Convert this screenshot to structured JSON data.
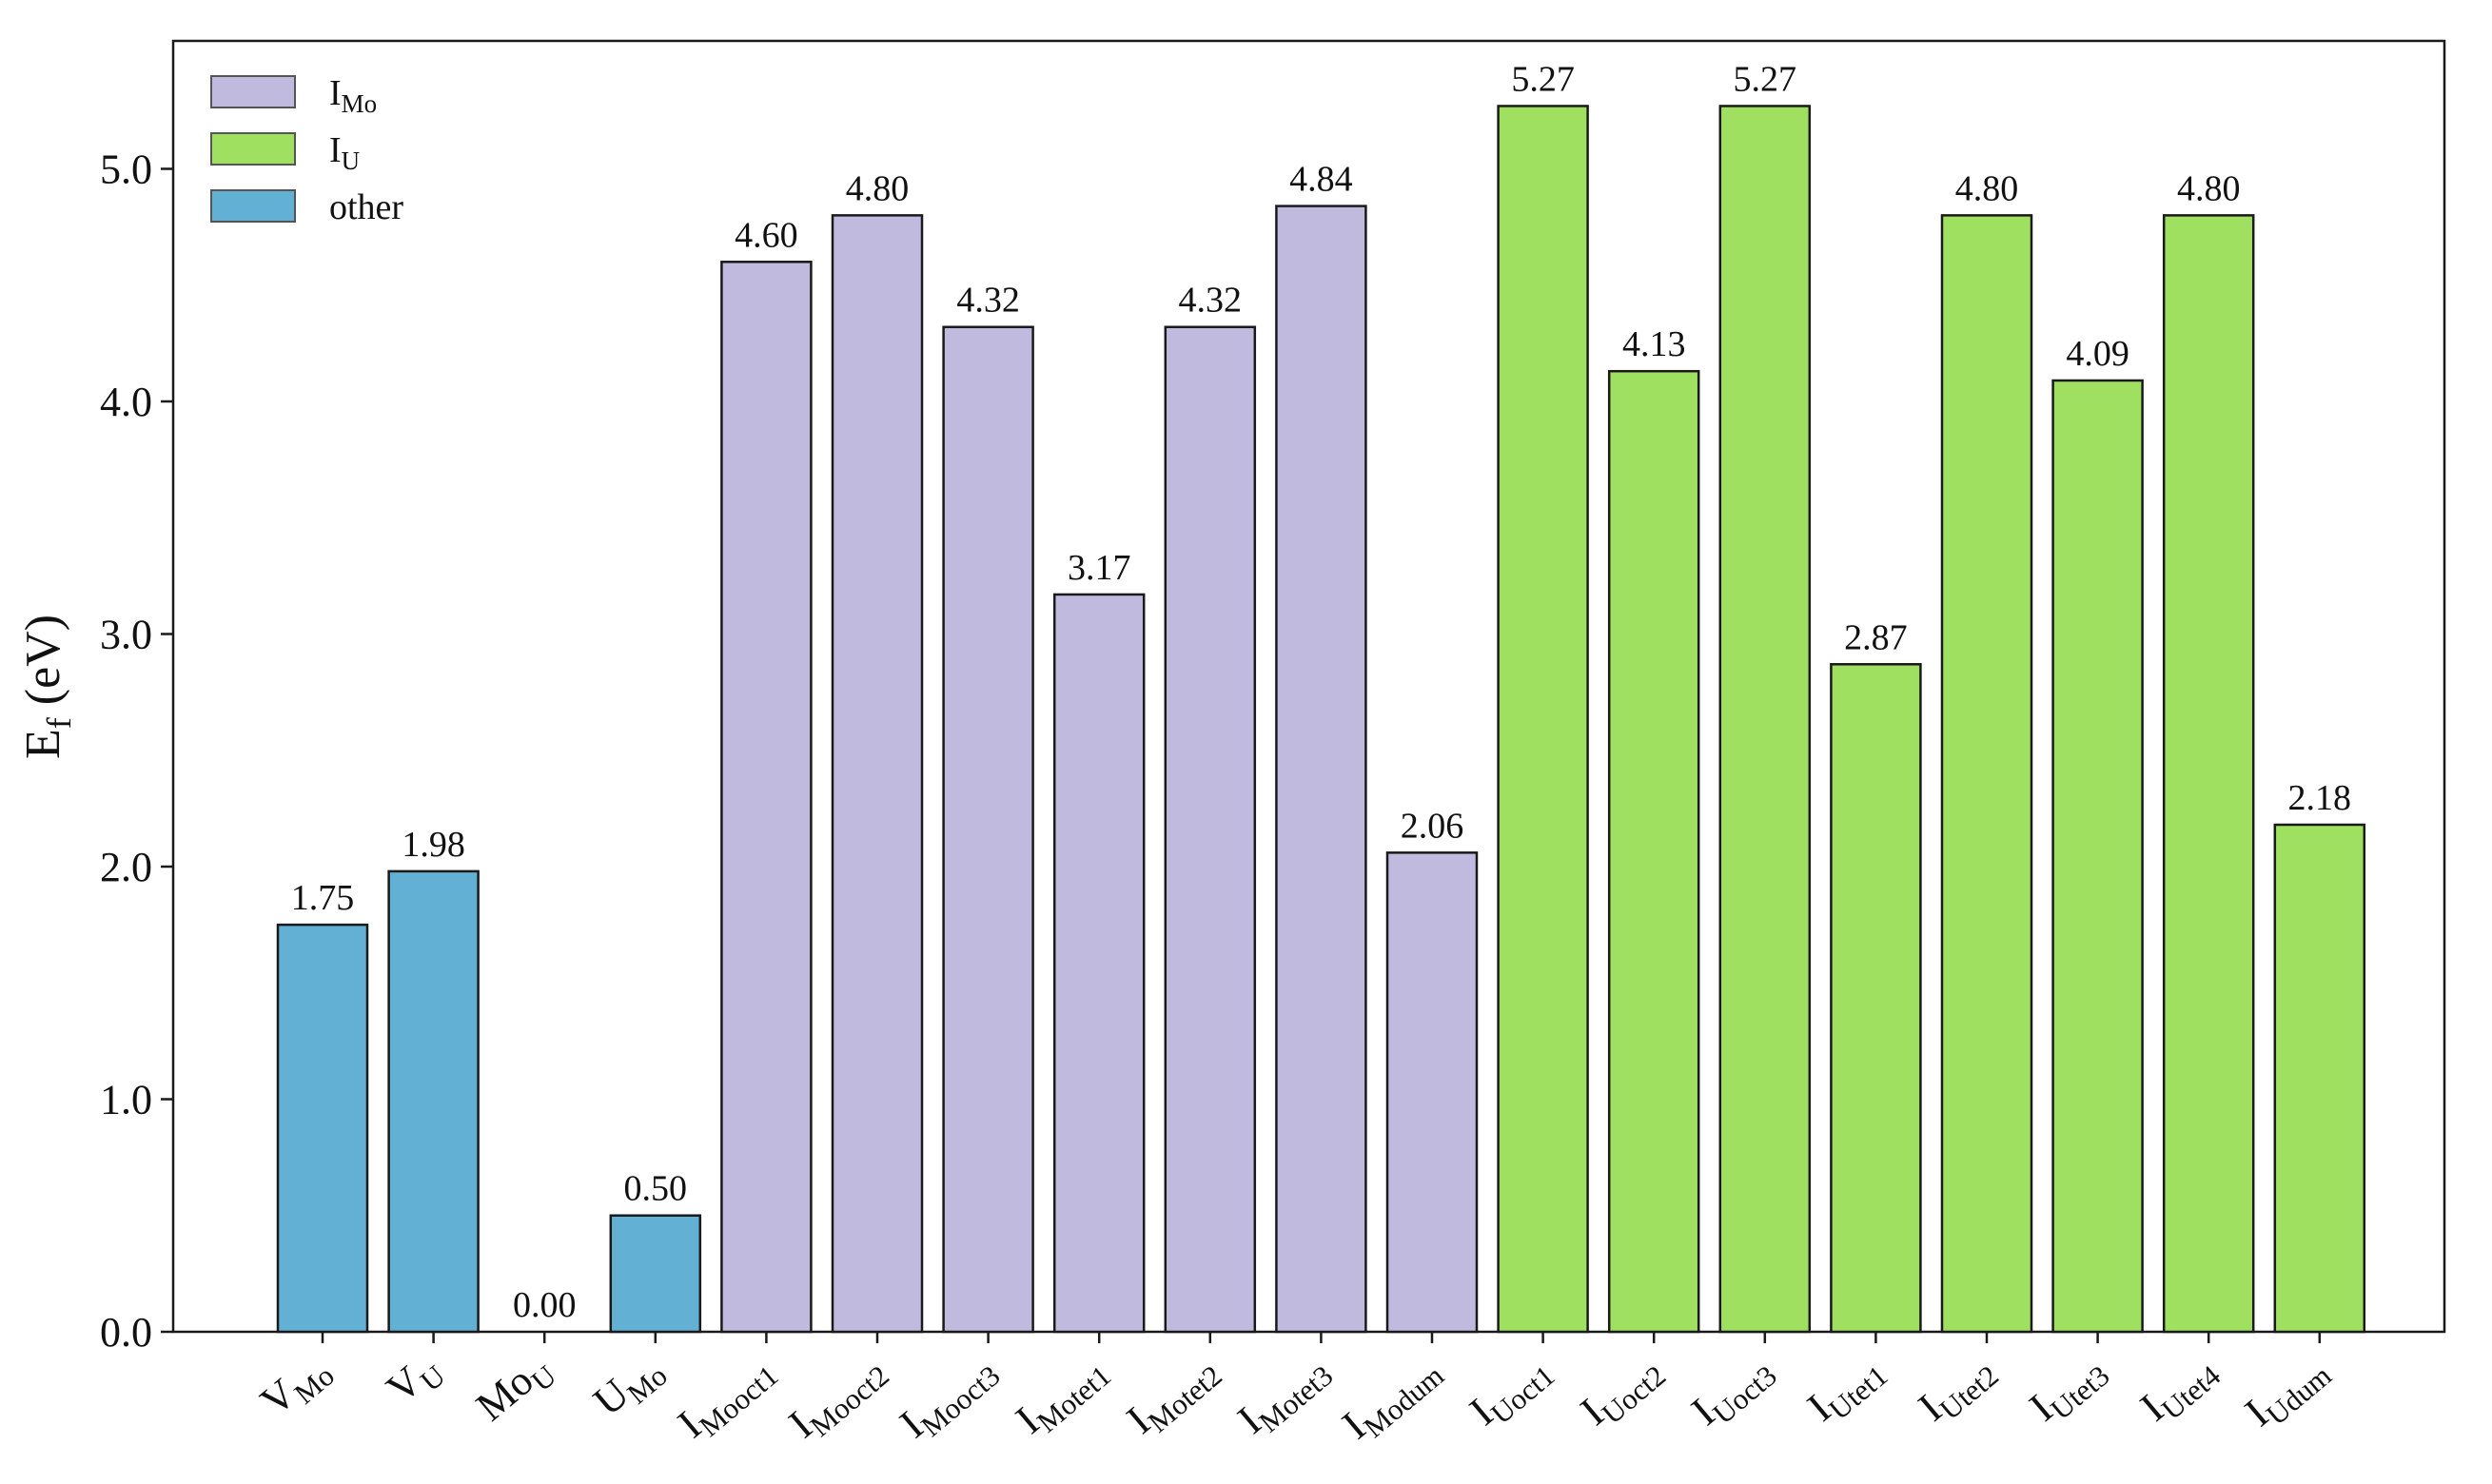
{
  "chart_data": {
    "type": "bar",
    "ylabel": {
      "main": "E",
      "sub": "f",
      "rest": " (eV)"
    },
    "ylim": [
      0,
      5.55
    ],
    "yticks": [
      0.0,
      1.0,
      2.0,
      3.0,
      4.0,
      5.0
    ],
    "ytick_labels": [
      "0.0",
      "1.0",
      "2.0",
      "3.0",
      "4.0",
      "5.0"
    ],
    "grid": false,
    "legend_position": "top-left",
    "colors": {
      "I_Mo": "#c0bbde",
      "I_U": "#a0e060",
      "other": "#62b0d4",
      "edge": "#1a1a1a"
    },
    "legend": [
      {
        "key": "I_Mo",
        "main": "I",
        "sub": "Mo"
      },
      {
        "key": "I_U",
        "main": "I",
        "sub": "U"
      },
      {
        "key": "other",
        "main": "other",
        "sub": ""
      }
    ],
    "categories": [
      {
        "main": "V",
        "sub": "Mo",
        "group": "other"
      },
      {
        "main": "V",
        "sub": "U",
        "group": "other"
      },
      {
        "main": "Mo",
        "sub": "U",
        "group": "other"
      },
      {
        "main": "U",
        "sub": "Mo",
        "group": "other"
      },
      {
        "main": "I",
        "sub": "Mooct1",
        "group": "I_Mo"
      },
      {
        "main": "I",
        "sub": "Mooct2",
        "group": "I_Mo"
      },
      {
        "main": "I",
        "sub": "Mooct3",
        "group": "I_Mo"
      },
      {
        "main": "I",
        "sub": "Motet1",
        "group": "I_Mo"
      },
      {
        "main": "I",
        "sub": "Motet2",
        "group": "I_Mo"
      },
      {
        "main": "I",
        "sub": "Motet3",
        "group": "I_Mo"
      },
      {
        "main": "I",
        "sub": "Modum",
        "group": "I_Mo"
      },
      {
        "main": "I",
        "sub": "Uoct1",
        "group": "I_U"
      },
      {
        "main": "I",
        "sub": "Uoct2",
        "group": "I_U"
      },
      {
        "main": "I",
        "sub": "Uoct3",
        "group": "I_U"
      },
      {
        "main": "I",
        "sub": "Utet1",
        "group": "I_U"
      },
      {
        "main": "I",
        "sub": "Utet2",
        "group": "I_U"
      },
      {
        "main": "I",
        "sub": "Utet3",
        "group": "I_U"
      },
      {
        "main": "I",
        "sub": "Utet4",
        "group": "I_U"
      },
      {
        "main": "I",
        "sub": "Udum",
        "group": "I_U"
      }
    ],
    "values": [
      1.75,
      1.98,
      0.0,
      0.5,
      4.6,
      4.8,
      4.32,
      3.17,
      4.32,
      4.84,
      2.06,
      5.27,
      4.13,
      5.27,
      2.87,
      4.8,
      4.09,
      4.8,
      2.18
    ],
    "value_labels": [
      "1.75",
      "1.98",
      "0.00",
      "0.50",
      "4.60",
      "4.80",
      "4.32",
      "3.17",
      "4.32",
      "4.84",
      "2.06",
      "5.27",
      "4.13",
      "5.27",
      "2.87",
      "4.80",
      "4.09",
      "4.80",
      "2.18"
    ]
  }
}
